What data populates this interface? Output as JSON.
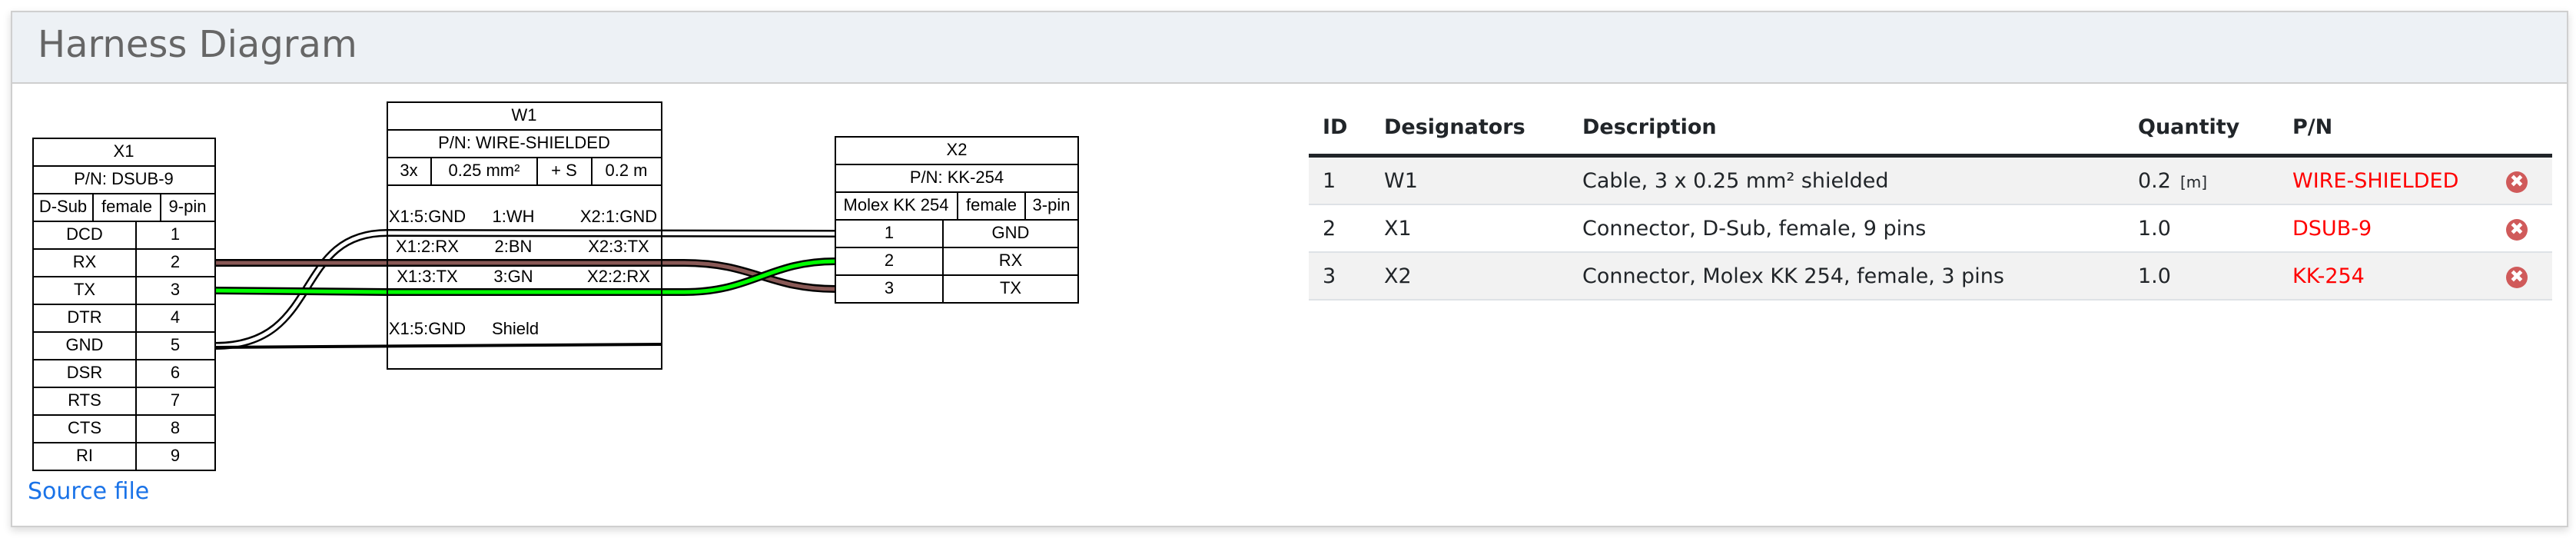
{
  "header": {
    "title": "Harness Diagram"
  },
  "diagram": {
    "x1": {
      "name": "X1",
      "pn": "P/N: DSUB-9",
      "type": "D-Sub",
      "gender": "female",
      "pincount": "9-pin",
      "pins": [
        {
          "label": "DCD",
          "num": "1"
        },
        {
          "label": "RX",
          "num": "2"
        },
        {
          "label": "TX",
          "num": "3"
        },
        {
          "label": "DTR",
          "num": "4"
        },
        {
          "label": "GND",
          "num": "5"
        },
        {
          "label": "DSR",
          "num": "6"
        },
        {
          "label": "RTS",
          "num": "7"
        },
        {
          "label": "CTS",
          "num": "8"
        },
        {
          "label": "RI",
          "num": "9"
        }
      ]
    },
    "w1": {
      "name": "W1",
      "pn": "P/N: WIRE-SHIELDED",
      "count": "3x",
      "gauge": "0.25 mm²",
      "shield": "+ S",
      "length": "0.2 m",
      "wires": [
        {
          "left": "X1:5:GND",
          "mid": "1:WH",
          "right": "X2:1:GND",
          "color": "#ffffff"
        },
        {
          "left": "X1:2:RX",
          "mid": "2:BN",
          "right": "X2:3:TX",
          "color": "#895956"
        },
        {
          "left": "X1:3:TX",
          "mid": "3:GN",
          "right": "X2:2:RX",
          "color": "#00ff00"
        }
      ],
      "shield_row": {
        "left": "X1:5:GND",
        "mid": "Shield"
      }
    },
    "x2": {
      "name": "X2",
      "pn": "P/N: KK-254",
      "type": "Molex KK 254",
      "gender": "female",
      "pincount": "3-pin",
      "pins": [
        {
          "num": "1",
          "label": "GND"
        },
        {
          "num": "2",
          "label": "RX"
        },
        {
          "num": "3",
          "label": "TX"
        }
      ]
    },
    "source_link": "Source file"
  },
  "bom": {
    "columns": [
      "ID",
      "Designators",
      "Description",
      "Quantity",
      "P/N"
    ],
    "rows": [
      {
        "id": "1",
        "designators": "W1",
        "description": "Cable, 3 x 0.25 mm² shielded",
        "qty": "0.2",
        "unit": "[m]",
        "pn": "WIRE-SHIELDED"
      },
      {
        "id": "2",
        "designators": "X1",
        "description": "Connector, D-Sub, female, 9 pins",
        "qty": "1.0",
        "unit": "",
        "pn": "DSUB-9"
      },
      {
        "id": "3",
        "designators": "X2",
        "description": "Connector, Molex KK 254, female, 3 pins",
        "qty": "1.0",
        "unit": "",
        "pn": "KK-254"
      }
    ],
    "remove_icon": "remove-circle-icon",
    "remove_glyph": "✖"
  }
}
